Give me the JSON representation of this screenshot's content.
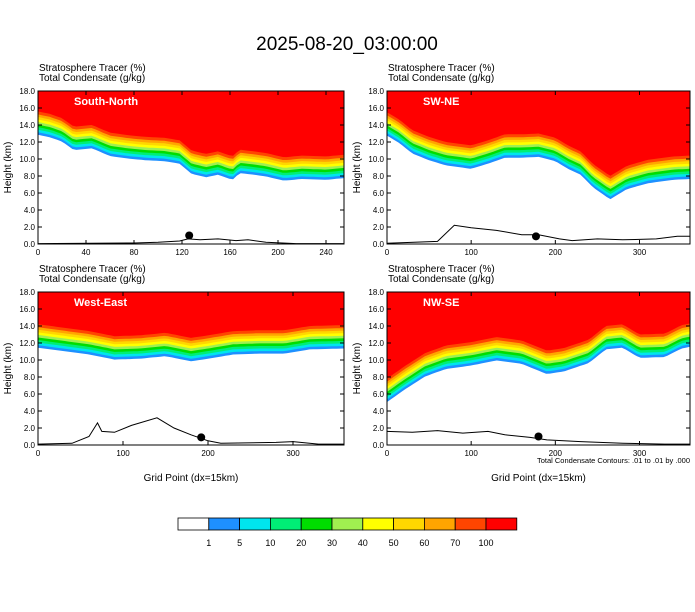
{
  "title": "2025-08-20_03:00:00",
  "colors": {
    "background": "#ffffff",
    "axis": "#000000",
    "topo": "#000000",
    "contour": "#000000"
  },
  "legend": {
    "boundaries": [
      "1",
      "5",
      "10",
      "20",
      "30",
      "40",
      "50",
      "60",
      "70",
      "100"
    ],
    "colors": [
      "#ffffff",
      "#1e90ff",
      "#00e5ee",
      "#00ee76",
      "#00dd00",
      "#a0f050",
      "#ffff00",
      "#ffd700",
      "#ffa500",
      "#ff4500",
      "#ff0000"
    ]
  },
  "contour_note": "Total Condensate Contours: .01 to .01 by .000",
  "xlabel": "Grid Point (dx=15km)",
  "chart_data": [
    {
      "type": "contour",
      "name": "South-North",
      "header1": "Stratosphere Tracer   (%)",
      "header2": "Total Condensate   (g/kg)",
      "ylabel": "Height (km)",
      "xlabel": "",
      "xlim": [
        0,
        255
      ],
      "ylim": [
        0,
        18
      ],
      "xticks": [
        0,
        40,
        80,
        120,
        160,
        200,
        240
      ],
      "yticks": [
        0.0,
        2.0,
        4.0,
        6.0,
        8.0,
        10.0,
        12.0,
        14.0,
        16.0,
        18.0
      ],
      "ytick_labels": [
        "0.0",
        "2.0",
        "4.0",
        "6.0",
        "8.0",
        "10.0",
        "12.0",
        "14.0",
        "16.0",
        "18.0"
      ],
      "tropopause_base_km": [
        [
          0,
          15.6
        ],
        [
          10,
          15.3
        ],
        [
          20,
          14.8
        ],
        [
          30,
          13.8
        ],
        [
          45,
          14.0
        ],
        [
          60,
          13.1
        ],
        [
          75,
          12.8
        ],
        [
          90,
          12.6
        ],
        [
          105,
          12.5
        ],
        [
          118,
          12.2
        ],
        [
          128,
          11.0
        ],
        [
          140,
          10.6
        ],
        [
          150,
          10.9
        ],
        [
          162,
          10.3
        ],
        [
          168,
          11.1
        ],
        [
          180,
          10.9
        ],
        [
          190,
          10.7
        ],
        [
          205,
          10.2
        ],
        [
          220,
          10.4
        ],
        [
          240,
          10.3
        ],
        [
          255,
          10.5
        ]
      ],
      "topography_km": [
        [
          0,
          0.05
        ],
        [
          45,
          0.08
        ],
        [
          80,
          0.12
        ],
        [
          100,
          0.2
        ],
        [
          118,
          0.35
        ],
        [
          125,
          0.6
        ],
        [
          135,
          0.5
        ],
        [
          150,
          0.6
        ],
        [
          165,
          0.4
        ],
        [
          175,
          0.5
        ],
        [
          190,
          0.2
        ],
        [
          215,
          0.05
        ],
        [
          245,
          0.05
        ],
        [
          255,
          0.05
        ]
      ],
      "marker": [
        126,
        1.0
      ]
    },
    {
      "type": "contour",
      "name": "SW-NE",
      "header1": "Stratosphere Tracer   (%)",
      "header2": "Total Condensate   (g/kg)",
      "ylabel": "Height (km)",
      "xlabel": "",
      "xlim": [
        0,
        360
      ],
      "ylim": [
        0,
        18
      ],
      "xticks": [
        0,
        100,
        200,
        300
      ],
      "yticks": [
        0.0,
        2.0,
        4.0,
        6.0,
        8.0,
        10.0,
        12.0,
        14.0,
        16.0,
        18.0
      ],
      "ytick_labels": [
        "0.0",
        "2.0",
        "4.0",
        "6.0",
        "8.0",
        "10.0",
        "12.0",
        "14.0",
        "16.0",
        "18.0"
      ],
      "tropopause_base_km": [
        [
          0,
          15.5
        ],
        [
          15,
          14.6
        ],
        [
          30,
          13.4
        ],
        [
          50,
          12.6
        ],
        [
          70,
          12.0
        ],
        [
          100,
          11.6
        ],
        [
          120,
          12.2
        ],
        [
          140,
          12.9
        ],
        [
          160,
          12.9
        ],
        [
          180,
          13.0
        ],
        [
          200,
          12.5
        ],
        [
          215,
          11.6
        ],
        [
          230,
          10.9
        ],
        [
          245,
          9.4
        ],
        [
          265,
          8.0
        ],
        [
          285,
          9.2
        ],
        [
          310,
          9.9
        ],
        [
          340,
          10.3
        ],
        [
          360,
          10.4
        ]
      ],
      "topography_km": [
        [
          0,
          0.1
        ],
        [
          60,
          0.3
        ],
        [
          80,
          2.2
        ],
        [
          100,
          1.9
        ],
        [
          130,
          1.6
        ],
        [
          160,
          1.1
        ],
        [
          180,
          1.1
        ],
        [
          205,
          0.6
        ],
        [
          220,
          0.4
        ],
        [
          250,
          0.6
        ],
        [
          280,
          0.5
        ],
        [
          320,
          0.6
        ],
        [
          345,
          0.9
        ],
        [
          360,
          0.9
        ]
      ],
      "marker": [
        177,
        0.9
      ]
    },
    {
      "type": "contour",
      "name": "West-East",
      "header1": "Stratosphere Tracer   (%)",
      "header2": "Total Condensate   (g/kg)",
      "ylabel": "Height (km)",
      "xlabel": "Grid Point (dx=15km)",
      "xlim": [
        0,
        360
      ],
      "ylim": [
        0,
        18
      ],
      "xticks": [
        0,
        100,
        200,
        300
      ],
      "yticks": [
        0.0,
        2.0,
        4.0,
        6.0,
        8.0,
        10.0,
        12.0,
        14.0,
        16.0,
        18.0
      ],
      "ytick_labels": [
        "0.0",
        "2.0",
        "4.0",
        "6.0",
        "8.0",
        "10.0",
        "12.0",
        "14.0",
        "16.0",
        "18.0"
      ],
      "tropopause_base_km": [
        [
          0,
          14.2
        ],
        [
          30,
          13.8
        ],
        [
          60,
          13.4
        ],
        [
          90,
          12.8
        ],
        [
          120,
          12.9
        ],
        [
          150,
          13.2
        ],
        [
          180,
          12.6
        ],
        [
          200,
          12.9
        ],
        [
          230,
          13.4
        ],
        [
          260,
          13.5
        ],
        [
          290,
          13.5
        ],
        [
          320,
          14.0
        ],
        [
          360,
          14.1
        ]
      ],
      "topography_km": [
        [
          0,
          0.1
        ],
        [
          40,
          0.2
        ],
        [
          60,
          1.0
        ],
        [
          70,
          2.6
        ],
        [
          75,
          1.6
        ],
        [
          90,
          1.5
        ],
        [
          110,
          2.3
        ],
        [
          140,
          3.2
        ],
        [
          160,
          2.0
        ],
        [
          180,
          1.2
        ],
        [
          200,
          0.5
        ],
        [
          215,
          0.2
        ],
        [
          280,
          0.3
        ],
        [
          300,
          0.4
        ],
        [
          330,
          0.1
        ],
        [
          360,
          0.1
        ]
      ],
      "marker": [
        192,
        0.9
      ]
    },
    {
      "type": "contour",
      "name": "NW-SE",
      "header1": "Stratosphere Tracer   (%)",
      "header2": "Total Condensate   (g/kg)",
      "ylabel": "Height (km)",
      "xlabel": "Grid Point (dx=15km)",
      "xlim": [
        0,
        360
      ],
      "ylim": [
        0,
        18
      ],
      "xticks": [
        0,
        100,
        200,
        300
      ],
      "yticks": [
        0.0,
        2.0,
        4.0,
        6.0,
        8.0,
        10.0,
        12.0,
        14.0,
        16.0,
        18.0
      ],
      "ytick_labels": [
        "0.0",
        "2.0",
        "4.0",
        "6.0",
        "8.0",
        "10.0",
        "12.0",
        "14.0",
        "16.0",
        "18.0"
      ],
      "tropopause_base_km": [
        [
          0,
          7.8
        ],
        [
          20,
          9.2
        ],
        [
          45,
          10.8
        ],
        [
          70,
          11.7
        ],
        [
          100,
          12.1
        ],
        [
          130,
          12.7
        ],
        [
          160,
          12.3
        ],
        [
          190,
          11.1
        ],
        [
          210,
          11.4
        ],
        [
          240,
          12.4
        ],
        [
          260,
          14.0
        ],
        [
          280,
          14.2
        ],
        [
          300,
          13.0
        ],
        [
          330,
          13.1
        ],
        [
          350,
          14.1
        ],
        [
          360,
          14.3
        ]
      ],
      "topography_km": [
        [
          0,
          1.6
        ],
        [
          30,
          1.5
        ],
        [
          60,
          1.7
        ],
        [
          90,
          1.4
        ],
        [
          120,
          1.6
        ],
        [
          140,
          1.2
        ],
        [
          170,
          0.9
        ],
        [
          190,
          0.6
        ],
        [
          230,
          0.4
        ],
        [
          280,
          0.2
        ],
        [
          330,
          0.1
        ],
        [
          360,
          0.1
        ]
      ],
      "marker": [
        180,
        1.0
      ]
    }
  ]
}
